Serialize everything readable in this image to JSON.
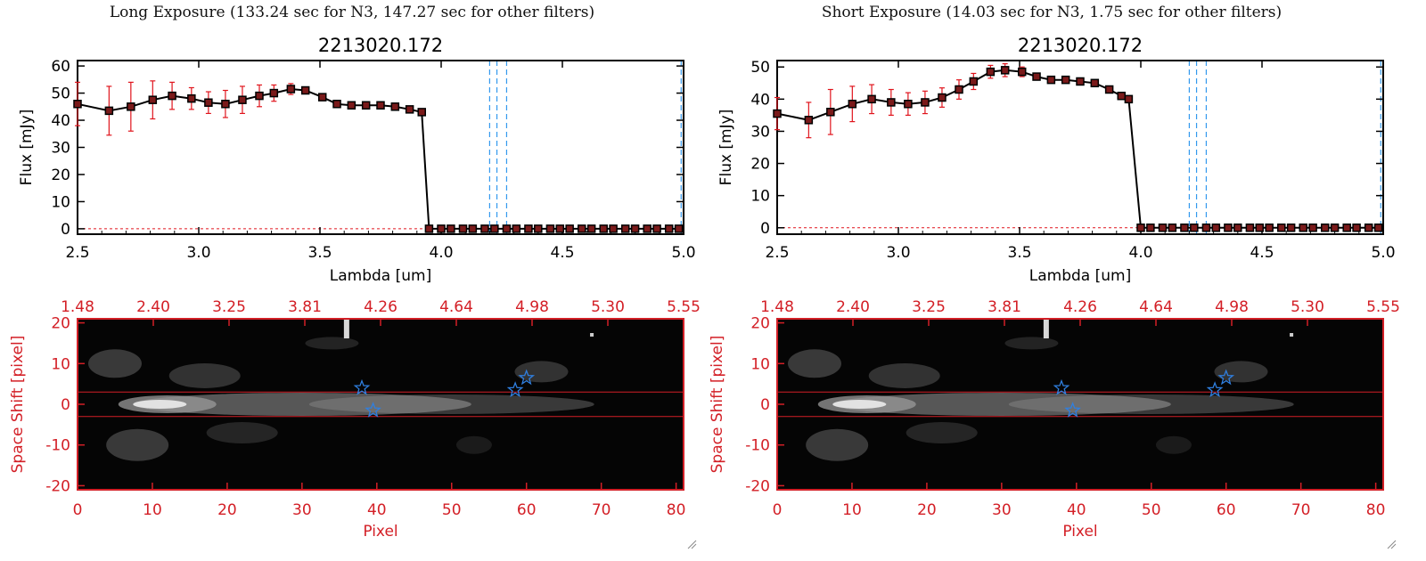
{
  "colors": {
    "accent_red": "#d31f26",
    "error_red": "#e0141c",
    "guide_blue": "#3399ee",
    "star_blue": "#2f7fe0",
    "axis_black": "#000000"
  },
  "panels": [
    {
      "title": "Long Exposure (133.24 sec for N3, 147.27 sec for other filters)",
      "chart_data": [
        {
          "type": "line",
          "title": "2213020.172",
          "xlabel": "Lambda [um]",
          "ylabel": "Flux [mJy]",
          "xlim": [
            2.5,
            5.0
          ],
          "ylim": [
            -2,
            62
          ],
          "xticks": [
            "2.5",
            "3.0",
            "3.5",
            "4.0",
            "4.5",
            "5.0"
          ],
          "yticks": [
            "0",
            "10",
            "20",
            "30",
            "40",
            "50",
            "60"
          ],
          "vlines": [
            4.2,
            4.23,
            4.27,
            4.99
          ],
          "grid": false,
          "series": [
            {
              "x": [
                2.5,
                2.63,
                2.72,
                2.81,
                2.89,
                2.97,
                3.04,
                3.11,
                3.18,
                3.25,
                3.31,
                3.38,
                3.44,
                3.51,
                3.57,
                3.63,
                3.69,
                3.75,
                3.81,
                3.87,
                3.92,
                3.95,
                4.0,
                4.04,
                4.09,
                4.13,
                4.18,
                4.22,
                4.27,
                4.31,
                4.36,
                4.4,
                4.45,
                4.49,
                4.53,
                4.58,
                4.62,
                4.67,
                4.71,
                4.76,
                4.8,
                4.85,
                4.89,
                4.94,
                4.98
              ],
              "y": [
                46,
                43.5,
                45,
                47.5,
                49,
                48,
                46.5,
                46,
                47.5,
                49,
                50,
                51.5,
                51,
                48.5,
                46,
                45.5,
                45.5,
                45.5,
                45,
                44,
                43,
                0,
                0,
                0,
                0,
                0,
                0,
                0,
                0,
                0,
                0,
                0,
                0,
                0,
                0,
                0,
                0,
                0,
                0,
                0,
                0,
                0,
                0,
                0,
                0
              ],
              "yerr": [
                8,
                9,
                9,
                7,
                5,
                4,
                4,
                5,
                5,
                4,
                3,
                2,
                1,
                1,
                1,
                1,
                1,
                1,
                1,
                1,
                1,
                0,
                0,
                0,
                0,
                0,
                0,
                0,
                0,
                0,
                0,
                0,
                0,
                0,
                0,
                0,
                0,
                0,
                0,
                0,
                0,
                0,
                0,
                0,
                0
              ]
            }
          ]
        },
        {
          "type": "heatmap",
          "xlabel": "Pixel",
          "ylabel": "Space Shift [pixel]",
          "xlim": [
            0,
            81
          ],
          "ylim": [
            -21,
            21
          ],
          "xticks": [
            "0",
            "10",
            "20",
            "30",
            "40",
            "50",
            "60",
            "70",
            "80"
          ],
          "yticks": [
            "-20",
            "-10",
            "0",
            "10",
            "20"
          ],
          "top_axis_ticks": [
            "1.48",
            "2.40",
            "3.25",
            "3.81",
            "4.26",
            "4.64",
            "4.98",
            "5.30",
            "5.55"
          ],
          "hlines": [
            3,
            -3
          ],
          "stars": [
            [
              38,
              4
            ],
            [
              39.5,
              -1.5
            ],
            [
              58.5,
              3.5
            ],
            [
              60,
              6.5
            ]
          ]
        }
      ]
    },
    {
      "title": "Short Exposure (14.03 sec for N3, 1.75 sec for other filters)",
      "chart_data": [
        {
          "type": "line",
          "title": "2213020.172",
          "xlabel": "Lambda [um]",
          "ylabel": "Flux [mJy]",
          "xlim": [
            2.5,
            5.0
          ],
          "ylim": [
            -2,
            52
          ],
          "xticks": [
            "2.5",
            "3.0",
            "3.5",
            "4.0",
            "4.5",
            "5.0"
          ],
          "yticks": [
            "0",
            "10",
            "20",
            "30",
            "40",
            "50"
          ],
          "vlines": [
            4.2,
            4.23,
            4.27,
            4.99
          ],
          "grid": false,
          "series": [
            {
              "x": [
                2.5,
                2.63,
                2.72,
                2.81,
                2.89,
                2.97,
                3.04,
                3.11,
                3.18,
                3.25,
                3.31,
                3.38,
                3.44,
                3.51,
                3.57,
                3.63,
                3.69,
                3.75,
                3.81,
                3.87,
                3.92,
                3.95,
                4.0,
                4.04,
                4.09,
                4.13,
                4.18,
                4.22,
                4.27,
                4.31,
                4.36,
                4.4,
                4.45,
                4.49,
                4.53,
                4.58,
                4.62,
                4.67,
                4.71,
                4.76,
                4.8,
                4.85,
                4.89,
                4.94,
                4.98
              ],
              "y": [
                35.5,
                33.5,
                36,
                38.5,
                40,
                39,
                38.5,
                39,
                40.5,
                43,
                45.5,
                48.5,
                49,
                48.5,
                47,
                46,
                46,
                45.5,
                45,
                43,
                41,
                40,
                0,
                0,
                0,
                0,
                0,
                0,
                0,
                0,
                0,
                0,
                0,
                0,
                0,
                0,
                0,
                0,
                0,
                0,
                0,
                0,
                0,
                0,
                0
              ],
              "yerr": [
                5,
                5.5,
                7,
                5.5,
                4.5,
                4,
                3.5,
                3.5,
                3,
                3,
                2.5,
                2,
                2,
                1.5,
                1,
                1,
                1,
                1,
                1,
                1,
                1,
                0,
                0,
                0,
                0,
                0,
                0,
                0,
                0,
                0,
                0,
                0,
                0,
                0,
                0,
                0,
                0,
                0,
                0,
                0,
                0,
                0,
                0,
                0,
                0
              ],
              "cutoff_x": 3.96
            }
          ]
        },
        {
          "type": "heatmap",
          "xlabel": "Pixel",
          "ylabel": "Space Shift [pixel]",
          "xlim": [
            0,
            81
          ],
          "ylim": [
            -21,
            21
          ],
          "xticks": [
            "0",
            "10",
            "20",
            "30",
            "40",
            "50",
            "60",
            "70",
            "80"
          ],
          "yticks": [
            "-20",
            "-10",
            "0",
            "10",
            "20"
          ],
          "top_axis_ticks": [
            "1.48",
            "2.40",
            "3.25",
            "3.81",
            "4.26",
            "4.64",
            "4.98",
            "5.30",
            "5.55"
          ],
          "hlines": [
            3,
            -3
          ],
          "stars": [
            [
              38,
              4
            ],
            [
              39.5,
              -1.5
            ],
            [
              58.5,
              3.5
            ],
            [
              60,
              6.5
            ]
          ]
        }
      ]
    }
  ]
}
